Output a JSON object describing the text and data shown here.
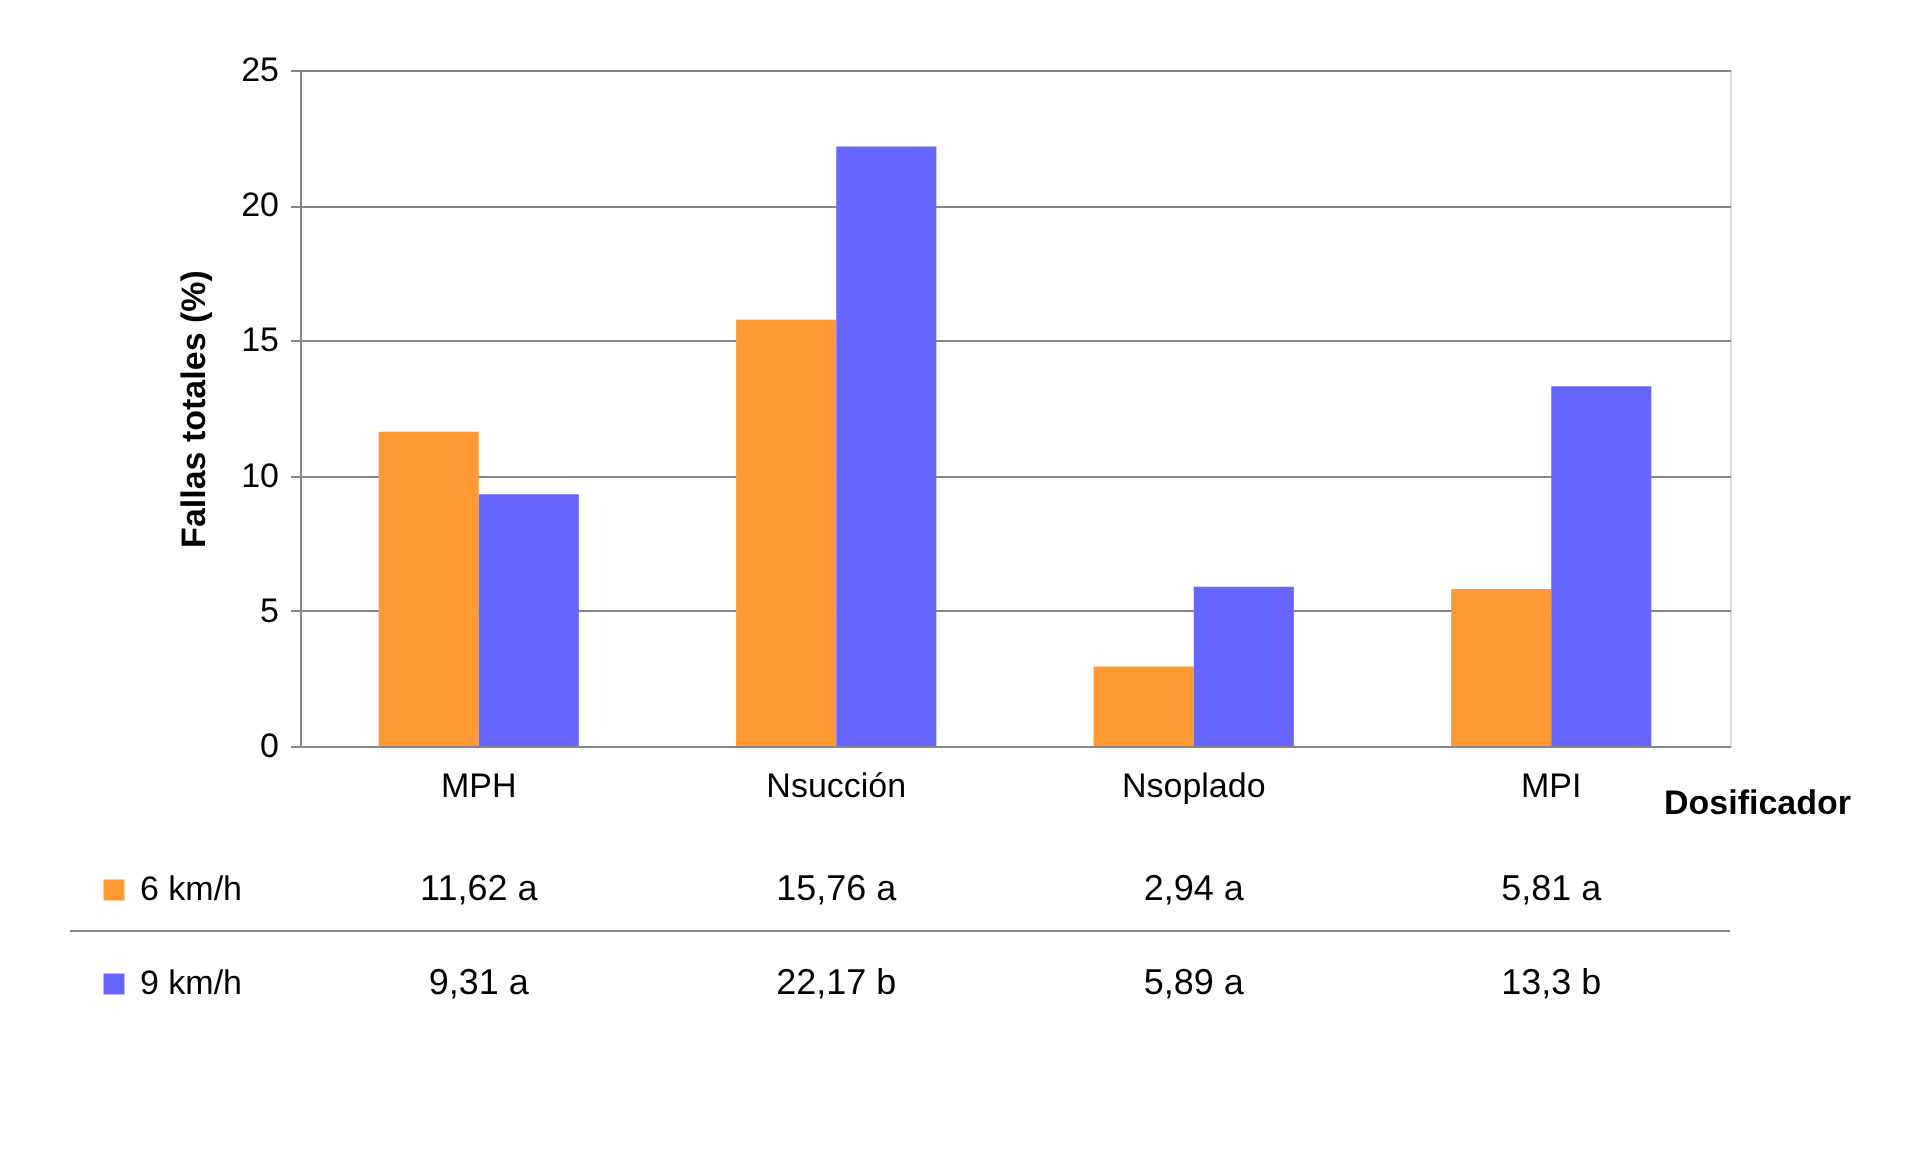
{
  "chart_data": {
    "type": "bar",
    "xlabel": "Dosificador",
    "ylabel": "Fallas totales (%)",
    "categories": [
      "MPH",
      "Nsucción",
      "Nsoplado",
      "MPI"
    ],
    "series": [
      {
        "name": "6 km/h",
        "color": "#ff9933",
        "values": [
          11.62,
          15.76,
          2.94,
          5.81
        ],
        "value_labels": [
          "11,62 a",
          "15,76 a",
          "2,94 a",
          "5,81 a"
        ]
      },
      {
        "name": "9 km/h",
        "color": "#6666ff",
        "values": [
          9.31,
          22.17,
          5.89,
          13.3
        ],
        "value_labels": [
          "9,31 a",
          "22,17 b",
          "5,89 a",
          "13,3 b"
        ]
      }
    ],
    "ylim": [
      0,
      25
    ],
    "yticks": [
      0,
      5,
      10,
      15,
      20,
      25
    ],
    "grid": "y",
    "legend": "bottom"
  }
}
